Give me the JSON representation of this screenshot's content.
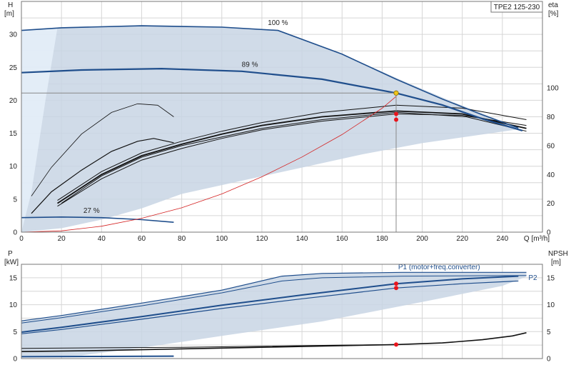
{
  "chart_data": [
    {
      "type": "line",
      "title": "TPE2 125-230",
      "x_label": "Q [m³/h]",
      "y_label": "H",
      "y_unit": "[m]",
      "y2_label": "eta",
      "y2_unit": "[%]",
      "xlim": [
        0,
        260
      ],
      "ylim": [
        0,
        35
      ],
      "y2lim": [
        0,
        160
      ],
      "x_ticks": [
        0,
        20,
        40,
        60,
        80,
        100,
        120,
        140,
        160,
        180,
        200,
        220,
        240
      ],
      "y_ticks": [
        0,
        5,
        10,
        15,
        20,
        25,
        30
      ],
      "y2_ticks": [
        0,
        20,
        40,
        60,
        80,
        100
      ],
      "grid": true,
      "duty_point": {
        "Q": 187,
        "H": 21.1,
        "eta_values": [
          82,
          78
        ]
      },
      "operating_area": [
        [
          0,
          30.6
        ],
        [
          20,
          31.1
        ],
        [
          60,
          31.4
        ],
        [
          100,
          31.2
        ],
        [
          128,
          30.6
        ],
        [
          160,
          27.0
        ],
        [
          190,
          23.0
        ],
        [
          215,
          19.8
        ],
        [
          240,
          16.8
        ],
        [
          248,
          15.6
        ],
        [
          200,
          13.5
        ],
        [
          170,
          11.8
        ],
        [
          140,
          9.8
        ],
        [
          110,
          7.8
        ],
        [
          80,
          5.8
        ],
        [
          60,
          3.6
        ],
        [
          40,
          1.9
        ],
        [
          20,
          0.6
        ],
        [
          0,
          0
        ]
      ],
      "lowflow_area": [
        [
          0,
          30.6
        ],
        [
          18,
          31.0
        ],
        [
          12,
          20
        ],
        [
          5,
          6
        ],
        [
          0,
          0
        ]
      ],
      "annotations": [
        {
          "text": "100 %",
          "Q": 128,
          "H": 31.4
        },
        {
          "text": "89 %",
          "Q": 114,
          "H": 25.1
        },
        {
          "text": "27 %",
          "Q": 35,
          "H": 2.9
        }
      ],
      "series": [
        {
          "name": "100 %",
          "color": "#1f4e8c",
          "width": 1.6,
          "points": [
            [
              0,
              30.6
            ],
            [
              20,
              31.0
            ],
            [
              60,
              31.3
            ],
            [
              100,
              31.1
            ],
            [
              128,
              30.6
            ],
            [
              160,
              27.0
            ],
            [
              187,
              23.2
            ],
            [
              210,
              20.2
            ],
            [
              230,
              17.8
            ],
            [
              248,
              15.8
            ]
          ]
        },
        {
          "name": "89 %",
          "color": "#1f4e8c",
          "width": 2.2,
          "points": [
            [
              0,
              24.2
            ],
            [
              30,
              24.6
            ],
            [
              70,
              24.8
            ],
            [
              110,
              24.4
            ],
            [
              150,
              23.2
            ],
            [
              187,
              21.1
            ],
            [
              210,
              19.3
            ],
            [
              230,
              17.2
            ],
            [
              250,
              15.4
            ]
          ]
        },
        {
          "name": "27 %",
          "color": "#1f4e8c",
          "width": 1.6,
          "points": [
            [
              0,
              2.2
            ],
            [
              20,
              2.3
            ],
            [
              40,
              2.2
            ],
            [
              60,
              1.9
            ],
            [
              76,
              1.5
            ]
          ]
        },
        {
          "color": "#d42020",
          "width": 0.8,
          "points": [
            [
              0,
              0
            ],
            [
              20,
              0.2
            ],
            [
              40,
              0.9
            ],
            [
              60,
              2.1
            ],
            [
              80,
              3.7
            ],
            [
              100,
              5.8
            ],
            [
              120,
              8.4
            ],
            [
              140,
              11.4
            ],
            [
              160,
              14.8
            ],
            [
              180,
              18.8
            ],
            [
              187,
              20.6
            ]
          ]
        },
        {
          "color": "#888888",
          "width": 1.0,
          "points": [
            [
              0,
              21.1
            ],
            [
              187,
              21.1
            ]
          ]
        },
        {
          "color": "#888888",
          "width": 1.0,
          "points": [
            [
              187,
              0
            ],
            [
              187,
              21.1
            ]
          ]
        }
      ],
      "eta_curves": [
        {
          "color": "#111111",
          "width": 0.8,
          "points": [
            [
              5,
              25
            ],
            [
              15,
              45
            ],
            [
              30,
              68
            ],
            [
              45,
              83
            ],
            [
              58,
              89
            ],
            [
              68,
              88
            ],
            [
              76,
              80
            ]
          ]
        },
        {
          "color": "#111111",
          "width": 1.2,
          "points": [
            [
              5,
              13
            ],
            [
              15,
              28
            ],
            [
              30,
              43
            ],
            [
              45,
              56
            ],
            [
              58,
              63
            ],
            [
              66,
              65
            ],
            [
              76,
              62
            ]
          ]
        },
        {
          "color": "#111111",
          "width": 1.0,
          "points": [
            [
              18,
              22
            ],
            [
              40,
              42
            ],
            [
              60,
              55
            ],
            [
              80,
              63
            ],
            [
              100,
              70
            ],
            [
              120,
              76
            ],
            [
              150,
              83
            ],
            [
              187,
              88
            ],
            [
              220,
              86
            ],
            [
              252,
              78
            ]
          ]
        },
        {
          "color": "#111111",
          "width": 1.8,
          "points": [
            [
              18,
              20
            ],
            [
              40,
              40
            ],
            [
              60,
              53
            ],
            [
              80,
              61
            ],
            [
              100,
              68
            ],
            [
              120,
              74
            ],
            [
              150,
              80
            ],
            [
              187,
              84
            ],
            [
              220,
              82
            ],
            [
              252,
              72
            ]
          ]
        },
        {
          "color": "#111111",
          "width": 1.0,
          "points": [
            [
              18,
              18
            ],
            [
              40,
              37
            ],
            [
              60,
              50
            ],
            [
              80,
              58
            ],
            [
              100,
              65
            ],
            [
              120,
              71
            ],
            [
              150,
              77
            ],
            [
              187,
              82
            ],
            [
              220,
              81
            ],
            [
              252,
              74
            ]
          ]
        },
        {
          "color": "#111111",
          "width": 1.0,
          "points": [
            [
              20,
              20
            ],
            [
              40,
              39
            ],
            [
              60,
              52
            ],
            [
              80,
              60
            ],
            [
              100,
              66
            ],
            [
              120,
              72
            ],
            [
              150,
              78
            ],
            [
              187,
              83
            ],
            [
              222,
              80
            ],
            [
              252,
              70
            ]
          ]
        }
      ]
    },
    {
      "type": "line",
      "x_label": "",
      "y_label": "P",
      "y_unit": "[kW]",
      "y2_label": "NPSH",
      "y2_unit": "[m]",
      "xlim": [
        0,
        260
      ],
      "ylim": [
        0,
        17.5
      ],
      "y_ticks": [
        0,
        5,
        10,
        15
      ],
      "y2_ticks": [
        0,
        5,
        10,
        15
      ],
      "grid": true,
      "duty_point": {
        "Q": 187,
        "P_values": [
          13.9,
          13.1
        ],
        "NPSH": 2.6
      },
      "operating_area": [
        [
          0,
          7.0
        ],
        [
          20,
          8.0
        ],
        [
          60,
          10.3
        ],
        [
          100,
          12.8
        ],
        [
          130,
          15.3
        ],
        [
          150,
          15.9
        ],
        [
          190,
          16.0
        ],
        [
          252,
          16.0
        ],
        [
          252,
          15.2
        ],
        [
          240,
          13.5
        ],
        [
          200,
          10.5
        ],
        [
          150,
          6.9
        ],
        [
          100,
          4.2
        ],
        [
          60,
          2.0
        ],
        [
          30,
          0.6
        ],
        [
          0,
          0.3
        ]
      ],
      "annotations": [
        {
          "text": "P1 (motor+freq.converter)",
          "Q": 188,
          "P": 16.6
        },
        {
          "text": "P2",
          "Q": 253,
          "P": 14.6
        }
      ],
      "series": [
        {
          "name": "P1 (motor+freq.converter)",
          "color": "#1f4e8c",
          "width": 1.2,
          "points": [
            [
              0,
              7.0
            ],
            [
              20,
              8.0
            ],
            [
              60,
              10.3
            ],
            [
              100,
              12.7
            ],
            [
              130,
              15.3
            ],
            [
              150,
              15.8
            ],
            [
              190,
              16.0
            ],
            [
              252,
              16.0
            ]
          ]
        },
        {
          "color": "#1f4e8c",
          "width": 1.0,
          "points": [
            [
              0,
              6.6
            ],
            [
              20,
              7.6
            ],
            [
              60,
              9.8
            ],
            [
              100,
              12.2
            ],
            [
              130,
              14.4
            ],
            [
              150,
              15.0
            ],
            [
              190,
              15.3
            ],
            [
              252,
              15.4
            ]
          ]
        },
        {
          "color": "#1f4e8c",
          "width": 2.0,
          "points": [
            [
              0,
              4.9
            ],
            [
              20,
              5.8
            ],
            [
              60,
              7.8
            ],
            [
              100,
              9.9
            ],
            [
              140,
              11.8
            ],
            [
              187,
              13.9
            ],
            [
              220,
              14.8
            ],
            [
              248,
              15.3
            ]
          ]
        },
        {
          "name": "P2",
          "color": "#1f4e8c",
          "width": 1.2,
          "points": [
            [
              0,
              4.6
            ],
            [
              20,
              5.4
            ],
            [
              60,
              7.3
            ],
            [
              100,
              9.3
            ],
            [
              140,
              11.1
            ],
            [
              187,
              13.1
            ],
            [
              220,
              13.9
            ],
            [
              248,
              14.4
            ]
          ]
        },
        {
          "color": "#1f4e8c",
          "width": 2.0,
          "points": [
            [
              0,
              0.35
            ],
            [
              40,
              0.4
            ],
            [
              76,
              0.45
            ]
          ]
        },
        {
          "color": "#111111",
          "width": 1.6,
          "points": [
            [
              0,
              1.3
            ],
            [
              40,
              1.5
            ],
            [
              80,
              1.8
            ],
            [
              120,
              2.1
            ],
            [
              160,
              2.4
            ],
            [
              187,
              2.6
            ],
            [
              210,
              2.9
            ],
            [
              230,
              3.5
            ],
            [
              245,
              4.2
            ],
            [
              252,
              4.8
            ]
          ]
        },
        {
          "color": "#111111",
          "width": 1.0,
          "points": [
            [
              0,
              1.9
            ],
            [
              40,
              2.0
            ],
            [
              80,
              2.1
            ],
            [
              120,
              2.3
            ],
            [
              160,
              2.5
            ],
            [
              187,
              2.6
            ]
          ]
        }
      ]
    }
  ]
}
